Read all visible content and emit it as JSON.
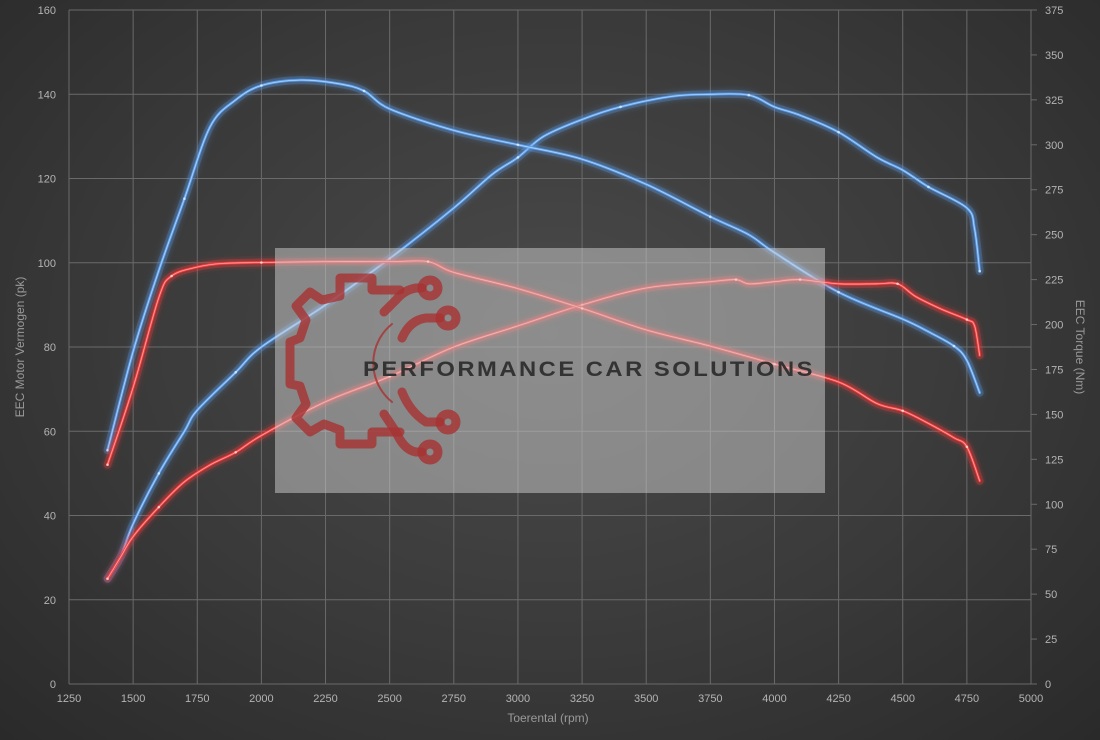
{
  "chart_data": {
    "type": "line",
    "xlabel": "Toerental (rpm)",
    "ylabel_left": "EEC Motor Vermogen (pk)",
    "ylabel_right": "EEC Torque (Nm)",
    "xlim": [
      1250,
      5000
    ],
    "ylim_left": [
      0,
      160
    ],
    "ylim_right": [
      0,
      375
    ],
    "x_ticks": [
      "1250",
      "1500",
      "1750",
      "2000",
      "2250",
      "2500",
      "2750",
      "3000",
      "3250",
      "3500",
      "3750",
      "4000",
      "4250",
      "4500",
      "4750",
      "5000"
    ],
    "y_left_ticks": [
      "0",
      "20",
      "40",
      "60",
      "80",
      "100",
      "120",
      "140",
      "160"
    ],
    "y_right_ticks": [
      "0",
      "25",
      "50",
      "75",
      "100",
      "125",
      "150",
      "175",
      "200",
      "225",
      "250",
      "275",
      "300",
      "325",
      "350",
      "375"
    ],
    "grid": true,
    "series": [
      {
        "axis": "left",
        "color": "#5aa0f0",
        "points": [
          [
            1400,
            25
          ],
          [
            1450,
            30
          ],
          [
            1500,
            38
          ],
          [
            1600,
            50
          ],
          [
            1700,
            60
          ],
          [
            1750,
            65
          ],
          [
            1900,
            74
          ],
          [
            2000,
            80
          ],
          [
            2250,
            90
          ],
          [
            2500,
            101
          ],
          [
            2750,
            113
          ],
          [
            2900,
            121
          ],
          [
            3000,
            125
          ],
          [
            3100,
            130
          ],
          [
            3250,
            134
          ],
          [
            3400,
            137
          ],
          [
            3600,
            139.5
          ],
          [
            3750,
            140
          ],
          [
            3900,
            139.8
          ],
          [
            4000,
            137
          ],
          [
            4100,
            135
          ],
          [
            4250,
            131
          ],
          [
            4400,
            125
          ],
          [
            4500,
            122
          ],
          [
            4600,
            118
          ],
          [
            4750,
            113
          ],
          [
            4780,
            108
          ],
          [
            4800,
            98
          ]
        ]
      },
      {
        "axis": "right",
        "color": "#5aa0f0",
        "points": [
          [
            1400,
            130
          ],
          [
            1500,
            185
          ],
          [
            1600,
            230
          ],
          [
            1700,
            270
          ],
          [
            1800,
            310
          ],
          [
            1900,
            325
          ],
          [
            2000,
            333
          ],
          [
            2150,
            336
          ],
          [
            2300,
            334
          ],
          [
            2400,
            330
          ],
          [
            2500,
            320
          ],
          [
            2750,
            308
          ],
          [
            3000,
            300
          ],
          [
            3250,
            292
          ],
          [
            3500,
            278
          ],
          [
            3750,
            260
          ],
          [
            3900,
            250
          ],
          [
            4000,
            240
          ],
          [
            4250,
            218
          ],
          [
            4500,
            203
          ],
          [
            4600,
            196
          ],
          [
            4700,
            188
          ],
          [
            4750,
            180
          ],
          [
            4800,
            162
          ]
        ]
      },
      {
        "axis": "left",
        "color": "#ff3c3c",
        "points": [
          [
            1400,
            25
          ],
          [
            1450,
            30
          ],
          [
            1500,
            35
          ],
          [
            1600,
            42
          ],
          [
            1700,
            48
          ],
          [
            1800,
            52
          ],
          [
            1900,
            55
          ],
          [
            2000,
            59
          ],
          [
            2250,
            67
          ],
          [
            2500,
            73
          ],
          [
            2750,
            80
          ],
          [
            3000,
            85
          ],
          [
            3250,
            90
          ],
          [
            3500,
            94
          ],
          [
            3750,
            95.5
          ],
          [
            3850,
            96
          ],
          [
            3900,
            95
          ],
          [
            4000,
            95.5
          ],
          [
            4100,
            96
          ],
          [
            4250,
            95
          ],
          [
            4400,
            95
          ],
          [
            4480,
            95
          ],
          [
            4550,
            92
          ],
          [
            4650,
            89
          ],
          [
            4750,
            86.5
          ],
          [
            4780,
            85
          ],
          [
            4800,
            78
          ]
        ]
      },
      {
        "axis": "right",
        "color": "#ff3c3c",
        "points": [
          [
            1400,
            122
          ],
          [
            1500,
            165
          ],
          [
            1600,
            215
          ],
          [
            1650,
            227
          ],
          [
            1750,
            232
          ],
          [
            1850,
            234
          ],
          [
            2000,
            234.5
          ],
          [
            2250,
            235
          ],
          [
            2500,
            235
          ],
          [
            2650,
            235
          ],
          [
            2750,
            229
          ],
          [
            3000,
            220
          ],
          [
            3250,
            209
          ],
          [
            3500,
            197
          ],
          [
            3750,
            188
          ],
          [
            4000,
            178
          ],
          [
            4250,
            168
          ],
          [
            4400,
            156
          ],
          [
            4500,
            152
          ],
          [
            4600,
            145
          ],
          [
            4700,
            137
          ],
          [
            4750,
            132
          ],
          [
            4800,
            113
          ]
        ]
      }
    ]
  },
  "watermark": {
    "text": "PERFORMANCE CAR SOLUTIONS",
    "logo_color": "#a83232"
  }
}
